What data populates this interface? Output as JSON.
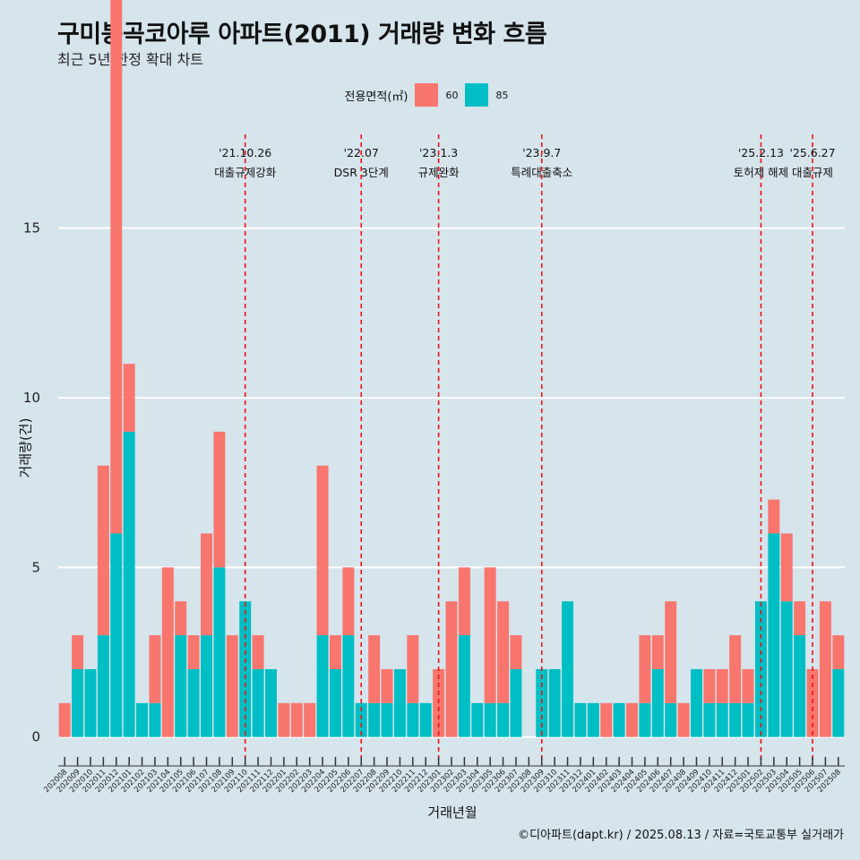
{
  "title": "구미봉곡코아루 아파트(2011) 거래량 변화 흐름",
  "subtitle": "최근 5년 한정 확대 차트",
  "legend": {
    "title": "전용면적(㎡)",
    "items": [
      {
        "label": "60",
        "color": "#f8766d"
      },
      {
        "label": "85",
        "color": "#00bfc4"
      }
    ]
  },
  "credit": "©디아파트(dapt.kr) / 2025.08.13 / 자료=국토교통부 실거래가",
  "chart_data": {
    "type": "bar",
    "xlabel": "거래년월",
    "ylabel": "거래량(건)",
    "ylim": [
      -0.8,
      17.5
    ],
    "yticks": [
      0,
      5,
      10,
      15
    ],
    "grid": true,
    "legend_position": "top",
    "categories": [
      "202008",
      "202009",
      "202010",
      "202011",
      "202012",
      "202101",
      "202102",
      "202103",
      "202104",
      "202105",
      "202106",
      "202107",
      "202108",
      "202109",
      "202110",
      "202111",
      "202112",
      "202201",
      "202202",
      "202203",
      "202204",
      "202205",
      "202206",
      "202207",
      "202208",
      "202209",
      "202210",
      "202211",
      "202212",
      "202301",
      "202302",
      "202303",
      "202304",
      "202305",
      "202306",
      "202307",
      "202308",
      "202309",
      "202310",
      "202311",
      "202312",
      "202401",
      "202402",
      "202403",
      "202404",
      "202405",
      "202406",
      "202407",
      "202408",
      "202409",
      "202410",
      "202411",
      "202412",
      "202501",
      "202502",
      "202503",
      "202504",
      "202505",
      "202506",
      "202507",
      "202508"
    ],
    "series": [
      {
        "name": "60",
        "color": "#f8766d",
        "values": [
          1,
          1,
          0,
          5,
          16,
          2,
          0,
          2,
          5,
          1,
          1,
          3,
          4,
          3,
          0,
          1,
          0,
          1,
          1,
          1,
          5,
          1,
          2,
          0,
          2,
          1,
          0,
          2,
          0,
          2,
          4,
          2,
          0,
          4,
          3,
          1,
          0,
          0,
          0,
          0,
          0,
          0,
          1,
          0,
          1,
          2,
          1,
          3,
          1,
          0,
          1,
          1,
          2,
          1,
          0,
          1,
          2,
          1,
          2,
          4,
          1
        ]
      },
      {
        "name": "85",
        "color": "#00bfc4",
        "values": [
          0,
          2,
          2,
          3,
          6,
          9,
          1,
          1,
          0,
          3,
          2,
          3,
          5,
          0,
          4,
          2,
          2,
          0,
          0,
          0,
          3,
          2,
          3,
          1,
          1,
          1,
          2,
          1,
          1,
          0,
          0,
          3,
          1,
          1,
          1,
          2,
          0,
          2,
          2,
          4,
          1,
          1,
          0,
          1,
          0,
          1,
          2,
          1,
          0,
          2,
          1,
          1,
          1,
          1,
          4,
          6,
          4,
          3,
          0,
          0,
          2
        ]
      }
    ],
    "annotations": [
      {
        "date": "'21.10.26",
        "label": "대출규제강화",
        "x": "202110"
      },
      {
        "date": "'22.07",
        "label": "DSR 3단계",
        "x": "202207"
      },
      {
        "date": "'23.1.3",
        "label": "규제완화",
        "x": "202301"
      },
      {
        "date": "'23.9.7",
        "label": "특례대출축소",
        "x": "202309"
      },
      {
        "date": "'25.2.13",
        "label": "토허제 해제",
        "x": "202502"
      },
      {
        "date": "'25.6.27",
        "label": "대출규제",
        "x": "202506"
      }
    ]
  }
}
